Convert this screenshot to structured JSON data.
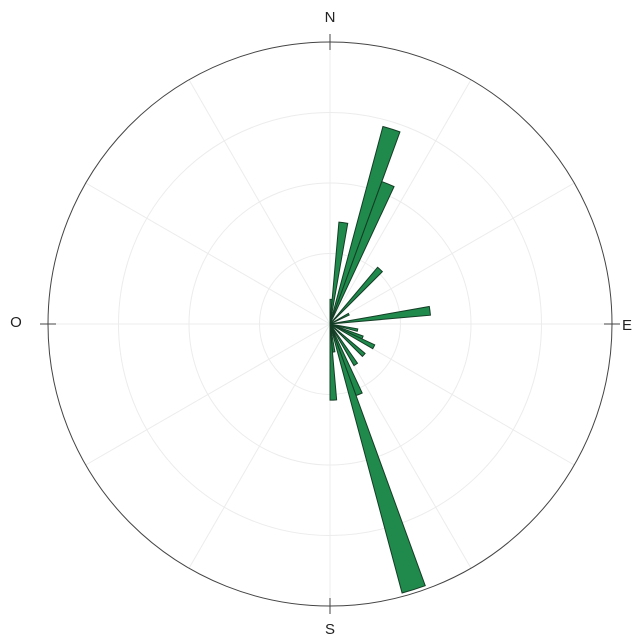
{
  "chart_data": {
    "type": "rose",
    "labels": {
      "north": "N",
      "east": "E",
      "south": "S",
      "west": "O"
    },
    "width": 5,
    "theta": [
      2.5,
      7.5,
      17.5,
      22.5,
      42.5,
      62.5,
      82.5,
      102.5,
      112.5,
      117.5,
      132.5,
      147.5,
      157.5,
      162.5,
      172.5,
      177.5
    ],
    "r": [
      0.35,
      1.45,
      2.9,
      2.15,
      1.05,
      0.3,
      1.43,
      0.4,
      0.5,
      0.7,
      0.65,
      0.68,
      1.08,
      3.95,
      0.4,
      1.08
    ],
    "color": "#1f8a4c",
    "rlim": [
      0,
      4
    ],
    "rticks": [
      1,
      2,
      3,
      4
    ],
    "thetaticks": [
      0,
      30,
      60,
      90,
      120,
      150,
      180,
      210,
      240,
      270,
      300,
      330
    ],
    "grid": true
  }
}
